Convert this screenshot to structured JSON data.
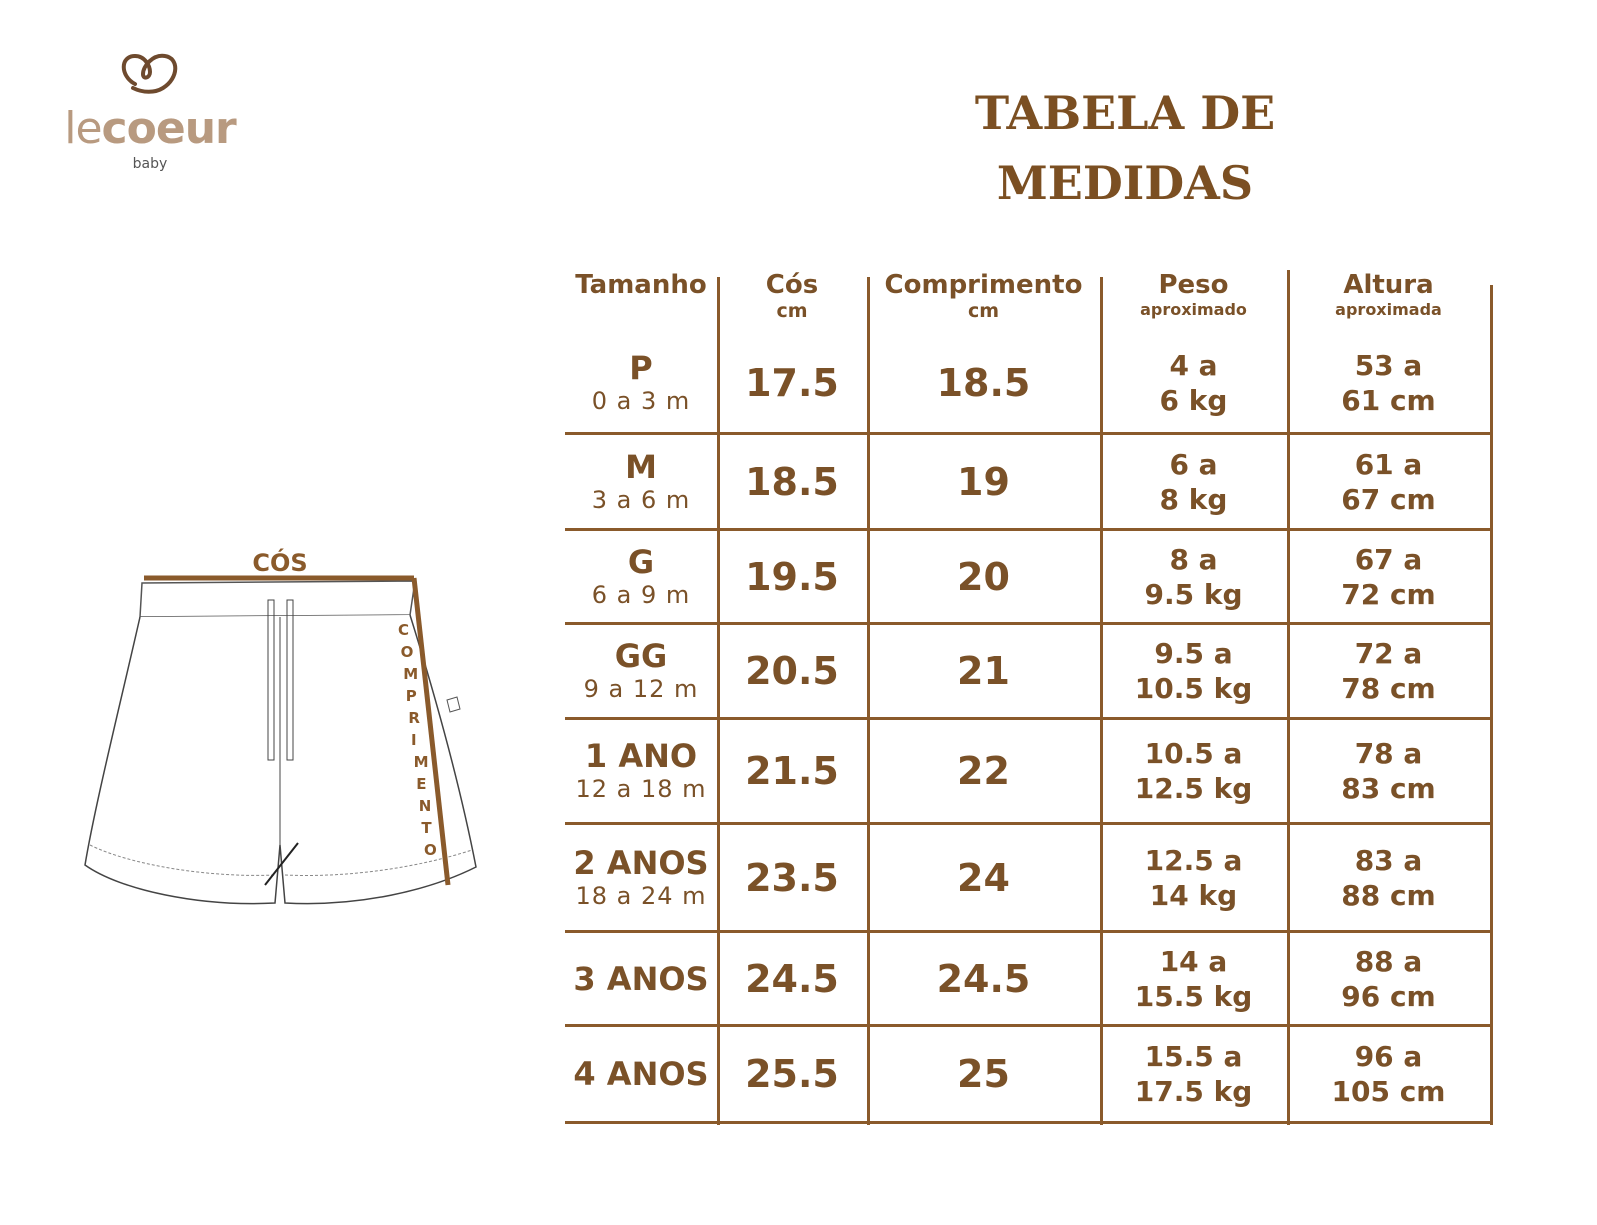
{
  "brand": {
    "name_light": "le",
    "name_bold": "coeur",
    "sub": "baby"
  },
  "title": {
    "line1": "TABELA DE",
    "line2": "MEDIDAS"
  },
  "colors": {
    "accent": "#8a5a2b",
    "text": "#7a5128"
  },
  "diagram": {
    "waist_label": "CÓS",
    "length_label": "COMPRIMENTO"
  },
  "table": {
    "headers": [
      {
        "label": "Tamanho",
        "sub": ""
      },
      {
        "label": "Cós",
        "sub": "cm"
      },
      {
        "label": "Comprimento",
        "sub": "cm"
      },
      {
        "label": "Peso",
        "sub": "aproximado"
      },
      {
        "label": "Altura",
        "sub": "aproximada"
      }
    ],
    "rows": [
      {
        "size": "P",
        "age": "0 a 3 m",
        "cos": "17.5",
        "comp": "18.5",
        "peso1": "4 a",
        "peso2": "6 kg",
        "alt1": "53 a",
        "alt2": "61 cm"
      },
      {
        "size": "M",
        "age": "3 a 6 m",
        "cos": "18.5",
        "comp": "19",
        "peso1": "6 a",
        "peso2": "8 kg",
        "alt1": "61 a",
        "alt2": "67 cm"
      },
      {
        "size": "G",
        "age": "6 a 9 m",
        "cos": "19.5",
        "comp": "20",
        "peso1": "8 a",
        "peso2": "9.5 kg",
        "alt1": "67 a",
        "alt2": "72 cm"
      },
      {
        "size": "GG",
        "age": "9 a 12 m",
        "cos": "20.5",
        "comp": "21",
        "peso1": "9.5 a",
        "peso2": "10.5 kg",
        "alt1": "72 a",
        "alt2": "78 cm"
      },
      {
        "size": "1 ANO",
        "age": "12 a 18 m",
        "cos": "21.5",
        "comp": "22",
        "peso1": "10.5 a",
        "peso2": "12.5 kg",
        "alt1": "78 a",
        "alt2": "83 cm"
      },
      {
        "size": "2 ANOS",
        "age": "18 a 24 m",
        "cos": "23.5",
        "comp": "24",
        "peso1": "12.5 a",
        "peso2": "14 kg",
        "alt1": "83 a",
        "alt2": "88 cm"
      },
      {
        "size": "3 ANOS",
        "age": "",
        "cos": "24.5",
        "comp": "24.5",
        "peso1": "14 a",
        "peso2": "15.5 kg",
        "alt1": "88 a",
        "alt2": "96 cm"
      },
      {
        "size": "4 ANOS",
        "age": "",
        "cos": "25.5",
        "comp": "25",
        "peso1": "15.5 a",
        "peso2": "17.5 kg",
        "alt1": "96 a",
        "alt2": "105 cm"
      }
    ]
  }
}
